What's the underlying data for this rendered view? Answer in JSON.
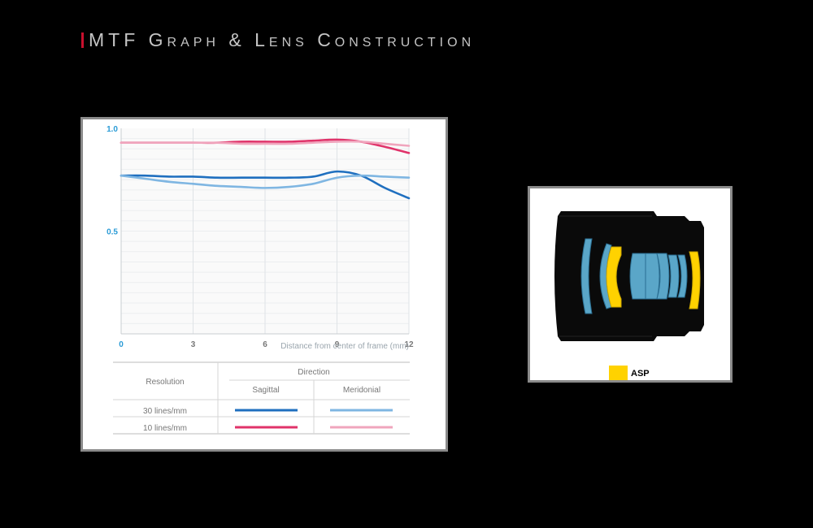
{
  "page": {
    "title": "MTF Graph & Lens Construction",
    "accent_color": "#c8102e"
  },
  "chart_data": {
    "type": "line",
    "xlabel": "Distance from center of frame (mm)",
    "x_ticks": [
      "0",
      "3",
      "6",
      "9",
      "12"
    ],
    "y_ticks": [
      "1.0",
      "0.5"
    ],
    "xlim": [
      0,
      12
    ],
    "ylim": [
      0,
      1.0
    ],
    "grid": true,
    "series": [
      {
        "color": "#e0336a",
        "style": "solid",
        "x": [
          0,
          1,
          2,
          3,
          4,
          5,
          6,
          7,
          8,
          9,
          10,
          11,
          12
        ],
        "y": [
          0.93,
          0.93,
          0.93,
          0.93,
          0.93,
          0.935,
          0.935,
          0.935,
          0.94,
          0.945,
          0.935,
          0.91,
          0.88
        ]
      },
      {
        "color": "#f0a5bd",
        "style": "solid",
        "x": [
          0,
          1,
          2,
          3,
          4,
          5,
          6,
          7,
          8,
          9,
          10,
          11,
          12
        ],
        "y": [
          0.93,
          0.93,
          0.93,
          0.93,
          0.93,
          0.925,
          0.925,
          0.925,
          0.93,
          0.935,
          0.935,
          0.925,
          0.915
        ]
      },
      {
        "color": "#1f6fbf",
        "style": "solid",
        "x": [
          0,
          1,
          2,
          3,
          4,
          5,
          6,
          7,
          8,
          9,
          10,
          11,
          12
        ],
        "y": [
          0.77,
          0.77,
          0.765,
          0.765,
          0.76,
          0.76,
          0.76,
          0.76,
          0.765,
          0.79,
          0.77,
          0.71,
          0.66
        ]
      },
      {
        "color": "#7fb6e2",
        "style": "solid",
        "x": [
          0,
          1,
          2,
          3,
          4,
          5,
          6,
          7,
          8,
          9,
          10,
          11,
          12
        ],
        "y": [
          0.77,
          0.755,
          0.74,
          0.73,
          0.72,
          0.715,
          0.71,
          0.715,
          0.73,
          0.76,
          0.77,
          0.765,
          0.76
        ]
      }
    ]
  },
  "legend_table": {
    "resolution_label": "Resolution",
    "direction_label": "Direction",
    "sagittal_label": "Sagittal",
    "meridional_label": "Meridonial",
    "rows": [
      {
        "label": "30 lines/mm",
        "sagittal_color": "#1f6fbf",
        "meridional_color": "#7fb6e2"
      },
      {
        "label": "10 lines/mm",
        "sagittal_color": "#e0336a",
        "meridional_color": "#f0a5bd"
      }
    ]
  },
  "lens_diagram": {
    "legend_label": "ASP",
    "aspherical_color": "#ffd200",
    "element_color": "#5aa6c8"
  }
}
